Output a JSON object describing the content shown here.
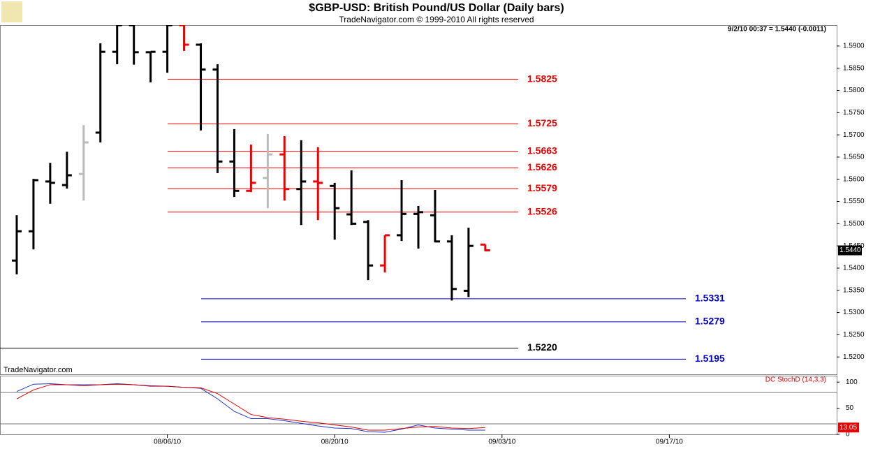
{
  "chart_data": [
    {
      "type": "ohlc",
      "title": "$GBP-USD:  British Pound/US Dollar  (Daily bars)",
      "subtitle": "TradeNavigator.com © 1999-2010 All rights reserved",
      "header": "9/2/10 00:37 = 1.5440 (-0.0011)",
      "watermark": "TradeNavigator.com",
      "x": [
        0,
        1,
        2,
        3,
        4,
        5,
        6,
        7,
        8,
        9,
        10,
        11,
        12,
        13,
        14,
        15,
        16,
        17,
        18,
        19,
        20,
        21,
        22,
        23,
        24,
        25,
        26,
        27,
        28
      ],
      "open": [
        1.5417,
        1.5483,
        1.5595,
        1.5587,
        1.5612,
        1.5705,
        1.5887,
        1.5947,
        1.5886,
        1.5887,
        1.5947,
        1.5903,
        1.5847,
        1.564,
        1.5574,
        1.5603,
        1.5656,
        1.5578,
        1.5595,
        1.5585,
        1.5521,
        1.5504,
        1.5406,
        1.5474,
        1.5522,
        1.5519,
        1.546,
        1.5349,
        1.5453
      ],
      "high": [
        1.5519,
        1.5601,
        1.5637,
        1.5662,
        1.5722,
        1.5906,
        1.5947,
        1.5947,
        1.5887,
        1.5947,
        1.5947,
        1.5906,
        1.5859,
        1.5713,
        1.5678,
        1.5702,
        1.5697,
        1.5688,
        1.5672,
        1.5592,
        1.562,
        1.5508,
        1.5474,
        1.5598,
        1.554,
        1.5576,
        1.5474,
        1.5491,
        1.5453
      ],
      "low": [
        1.5386,
        1.5442,
        1.5545,
        1.5579,
        1.5552,
        1.5683,
        1.5859,
        1.5858,
        1.5818,
        1.584,
        1.5889,
        1.571,
        1.5614,
        1.556,
        1.5571,
        1.5535,
        1.5552,
        1.5497,
        1.5508,
        1.5464,
        1.5497,
        1.5373,
        1.539,
        1.5461,
        1.5444,
        1.5458,
        1.5327,
        1.5335,
        1.5438
      ],
      "close": [
        1.5483,
        1.5598,
        1.5592,
        1.5609,
        1.5683,
        1.5887,
        1.5947,
        1.5886,
        1.5887,
        1.5947,
        1.5903,
        1.5847,
        1.564,
        1.5574,
        1.5592,
        1.5656,
        1.5578,
        1.5595,
        1.5592,
        1.5535,
        1.55,
        1.5406,
        1.5474,
        1.5522,
        1.5526,
        1.546,
        1.5353,
        1.545,
        1.544
      ],
      "colors": [
        "#000",
        "#000",
        "#000",
        "#000",
        "#bbbbbb",
        "#000",
        "#000",
        "#000",
        "#000",
        "#000",
        "#ee0000",
        "#000",
        "#000",
        "#000",
        "#ee0000",
        "#bbbbbb",
        "#ee0000",
        "#000",
        "#ee0000",
        "#000",
        "#000",
        "#000",
        "#ee0000",
        "#000",
        "#000",
        "#000",
        "#000",
        "#000",
        "#ee0000"
      ],
      "levels": {
        "values": [
          1.5825,
          1.5725,
          1.5663,
          1.5626,
          1.5579,
          1.5526,
          1.5331,
          1.5279,
          1.522,
          1.5195
        ],
        "value_labels": [
          "1.5825",
          "1.5725",
          "1.5663",
          "1.5626",
          "1.5579",
          "1.5526",
          "1.5331",
          "1.5279",
          "1.5220",
          "1.5195"
        ],
        "colors": [
          "#ee0000",
          "#ee0000",
          "#ee0000",
          "#ee0000",
          "#ee0000",
          "#ee0000",
          "#0000cc",
          "#0000cc",
          "#000000",
          "#0000cc"
        ]
      },
      "current_value": 1.544,
      "current_label": "1.5440",
      "xlim": [
        -1,
        49
      ],
      "xticks": [
        {
          "value": 9,
          "label": "08/06/10"
        },
        {
          "value": 19,
          "label": "08/20/10"
        },
        {
          "value": 29,
          "label": "09/03/10"
        },
        {
          "value": 39,
          "label": "09/17/10"
        }
      ],
      "ylim": [
        1.5161,
        1.5947
      ],
      "yticks": [
        {
          "value": 1.52,
          "label": "1.5200"
        },
        {
          "value": 1.525,
          "label": "1.5250"
        },
        {
          "value": 1.53,
          "label": "1.5300"
        },
        {
          "value": 1.535,
          "label": "1.5350"
        },
        {
          "value": 1.54,
          "label": "1.5400"
        },
        {
          "value": 1.545,
          "label": "1.5450"
        },
        {
          "value": 1.55,
          "label": "1.5500"
        },
        {
          "value": 1.555,
          "label": "1.5550"
        },
        {
          "value": 1.56,
          "label": "1.5600"
        },
        {
          "value": 1.565,
          "label": "1.5650"
        },
        {
          "value": 1.57,
          "label": "1.5700"
        },
        {
          "value": 1.575,
          "label": "1.5750"
        },
        {
          "value": 1.58,
          "label": "1.5800"
        },
        {
          "value": 1.585,
          "label": "1.5850"
        },
        {
          "value": 1.59,
          "label": "1.5900"
        }
      ]
    },
    {
      "type": "line",
      "label": "DC StochD (14,3,3)",
      "series": [
        {
          "color": "#2233cc",
          "values": [
            82,
            96,
            97,
            95,
            95,
            95,
            97,
            95,
            92,
            92,
            90,
            88,
            68,
            44,
            30,
            30,
            26,
            21,
            16,
            12,
            11,
            5,
            4,
            10,
            18,
            12,
            10,
            8,
            8
          ]
        },
        {
          "color": "#dd0000",
          "values": [
            68,
            85,
            95,
            95,
            93,
            95,
            96,
            95,
            93,
            92,
            90,
            89,
            78,
            58,
            38,
            32,
            29,
            25,
            22,
            18,
            14,
            8,
            8,
            11,
            14,
            15,
            12,
            11,
            13.05
          ]
        }
      ],
      "current_label": "13.05",
      "reference_lines": [
        80,
        20
      ],
      "ylim": [
        0,
        112.3
      ],
      "yticks": [
        0,
        50,
        100
      ]
    }
  ]
}
